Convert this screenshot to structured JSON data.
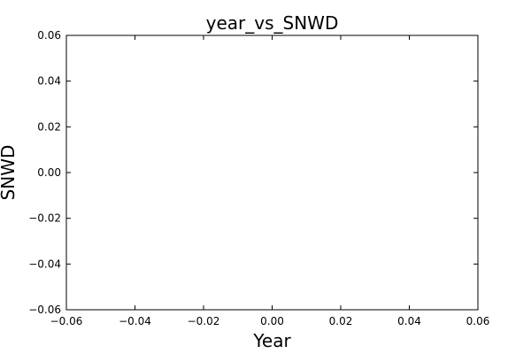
{
  "chart_data": {
    "type": "scatter",
    "title": "year_vs_SNWD",
    "xlabel": "Year",
    "ylabel": "SNWD",
    "xlim": [
      -0.06,
      0.06
    ],
    "ylim": [
      -0.06,
      0.06
    ],
    "x_ticks": [
      "−0.06",
      "−0.04",
      "−0.02",
      "0.00",
      "0.02",
      "0.04",
      "0.06"
    ],
    "y_ticks": [
      "0.06",
      "0.04",
      "0.02",
      "0.00",
      "−0.02",
      "−0.04",
      "−0.06"
    ],
    "x_tick_values": [
      -0.06,
      -0.04,
      -0.02,
      0.0,
      0.02,
      0.04,
      0.06
    ],
    "y_tick_values": [
      0.06,
      0.04,
      0.02,
      0.0,
      -0.02,
      -0.04,
      -0.06
    ],
    "series": [
      {
        "x": [],
        "y": []
      }
    ],
    "grid": false,
    "legend": "none"
  }
}
